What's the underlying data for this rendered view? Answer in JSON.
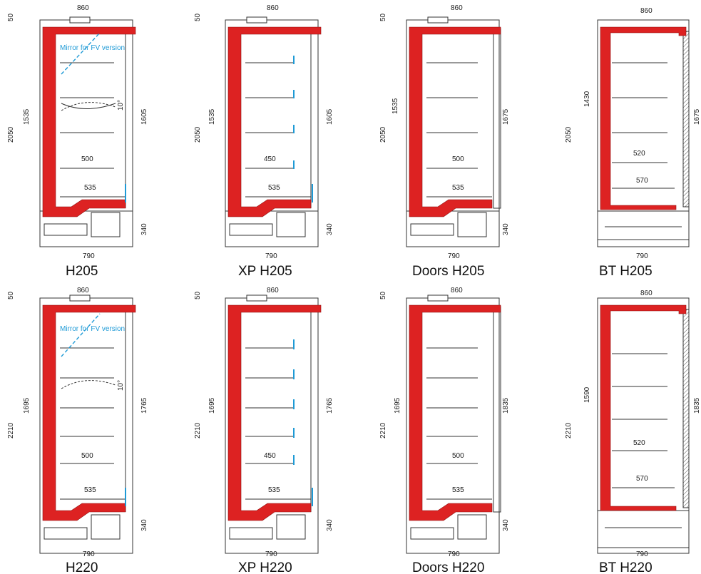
{
  "colors": {
    "insulation": "#dd2222",
    "line": "#333333",
    "mirror": "#1e9ad6",
    "shelf_tag": "#1e9ad6"
  },
  "row_top": {
    "height_total": "2050",
    "height_front": "1535",
    "height_back": "1605",
    "height_back_doors": "1675",
    "height_bt_front": "1430",
    "height_bt_back": "1675"
  },
  "row_bottom": {
    "height_total": "2210",
    "height_front": "1695",
    "height_back": "1765",
    "height_back_doors": "1835",
    "height_bt_front": "1590",
    "height_bt_back": "1835"
  },
  "common": {
    "width_top": "860",
    "width_bottom": "790",
    "top_offset": "50",
    "base_height": "340",
    "shelf_500": "500",
    "shelf_450": "450",
    "shelf_535": "535",
    "shelf_520": "520",
    "shelf_570": "570",
    "angle": "10°",
    "mirror_note": "Mirror for FV version"
  },
  "units": [
    {
      "caption": "H205",
      "kind": "std"
    },
    {
      "caption": "XP H205",
      "kind": "xp"
    },
    {
      "caption": "Doors H205",
      "kind": "doors"
    },
    {
      "caption": "BT H205",
      "kind": "bt"
    },
    {
      "caption": "H220",
      "kind": "std"
    },
    {
      "caption": "XP H220",
      "kind": "xp"
    },
    {
      "caption": "Doors H220",
      "kind": "doors"
    },
    {
      "caption": "BT H220",
      "kind": "bt"
    }
  ]
}
